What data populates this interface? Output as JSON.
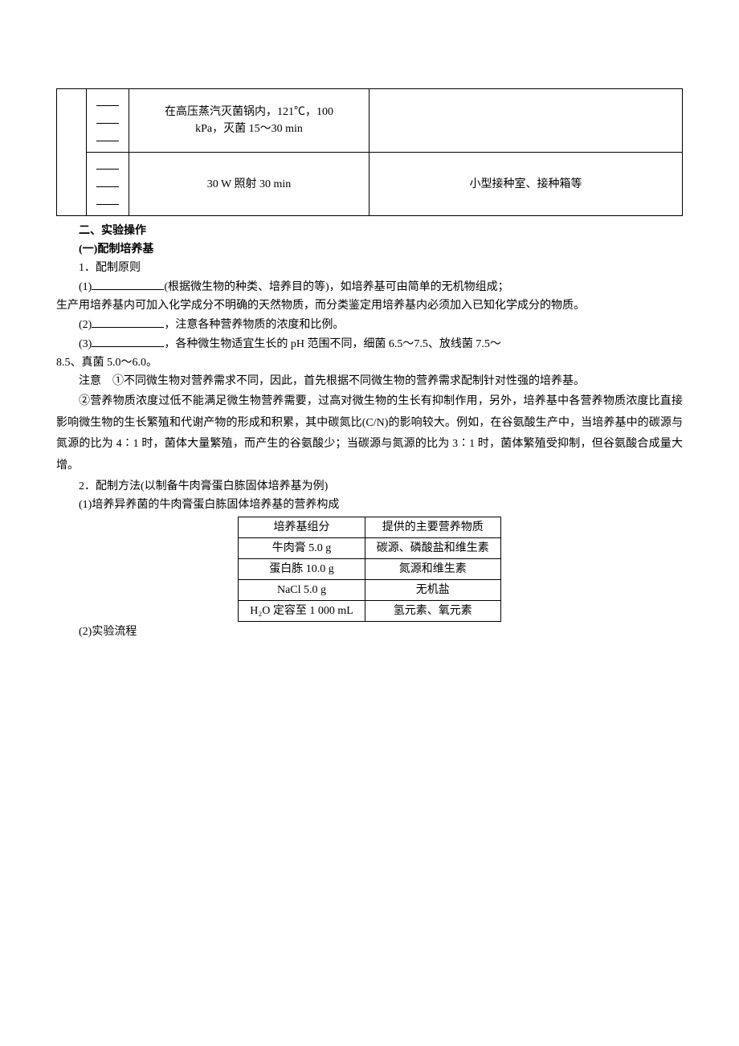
{
  "outerTable": {
    "row1": {
      "col1_lines": [
        "—",
        "—",
        "—"
      ],
      "col2_l1": "在高压蒸汽灭菌锅内，121℃，100",
      "col2_l2": "kPa，灭菌 15～30 min",
      "col3": ""
    },
    "row2": {
      "col1_lines": [
        "—",
        "—",
        "—"
      ],
      "col2": "30 W 照射 30 min",
      "col3": "小型接种室、接种箱等"
    }
  },
  "sec2": {
    "title": "二、实验操作",
    "sub1": "(一)配制培养基",
    "p1": "1．配制原则",
    "p2a": "(1)",
    "p2b": "(根据微生物的种类、培养目的等)，如培养基可由简单的无机物组成；",
    "p2c": "生产用培养基内可加入化学成分不明确的天然物质，而分类鉴定用培养基内必须加入已知化学成分的物质。",
    "p3a": "(2)",
    "p3b": "，注意各种营养物质的浓度和比例。",
    "p4a": "(3)",
    "p4b": "，各种微生物适宜生长的 pH 范围不同，细菌 6.5～7.5、放线菌 7.5～",
    "p4c": "8.5、真菌 5.0～6.0。",
    "p5": "注意　①不同微生物对营养需求不同，因此，首先根据不同微生物的营养需求配制针对性强的培养基。",
    "p6": "②营养物质浓度过低不能满足微生物营养需要，过高对微生物的生长有抑制作用，另外，培养基中各营养物质浓度比直接影响微生物的生长繁殖和代谢产物的形成和积累，其中碳氮比(C/N)的影响较大。例如，在谷氨酸生产中，当培养基中的碳源与氮源的比为 4∶1 时，菌体大量繁殖，而产生的谷氨酸少；当碳源与氮源的比为 3∶1 时，菌体繁殖受抑制，但谷氨酸合成量大增。",
    "p7": "2．配制方法(以制备牛肉膏蛋白胨固体培养基为例)",
    "p8": "(1)培养异养菌的牛肉膏蛋白胨固体培养基的营养构成"
  },
  "nutriTable": {
    "header": {
      "c1": "培养基组分",
      "c2": "提供的主要营养物质"
    },
    "rows": [
      {
        "c1": "牛肉膏 5.0 g",
        "c2": "碳源、磷酸盐和维生素"
      },
      {
        "c1": "蛋白胨 10.0 g",
        "c2": "氮源和维生素"
      },
      {
        "c1": "NaCl 5.0 g",
        "c2": "无机盐"
      },
      {
        "c1": "H₂O 定容至 1 000 mL",
        "c2": "氢元素、氧元素"
      }
    ]
  },
  "p9": "(2)实验流程"
}
